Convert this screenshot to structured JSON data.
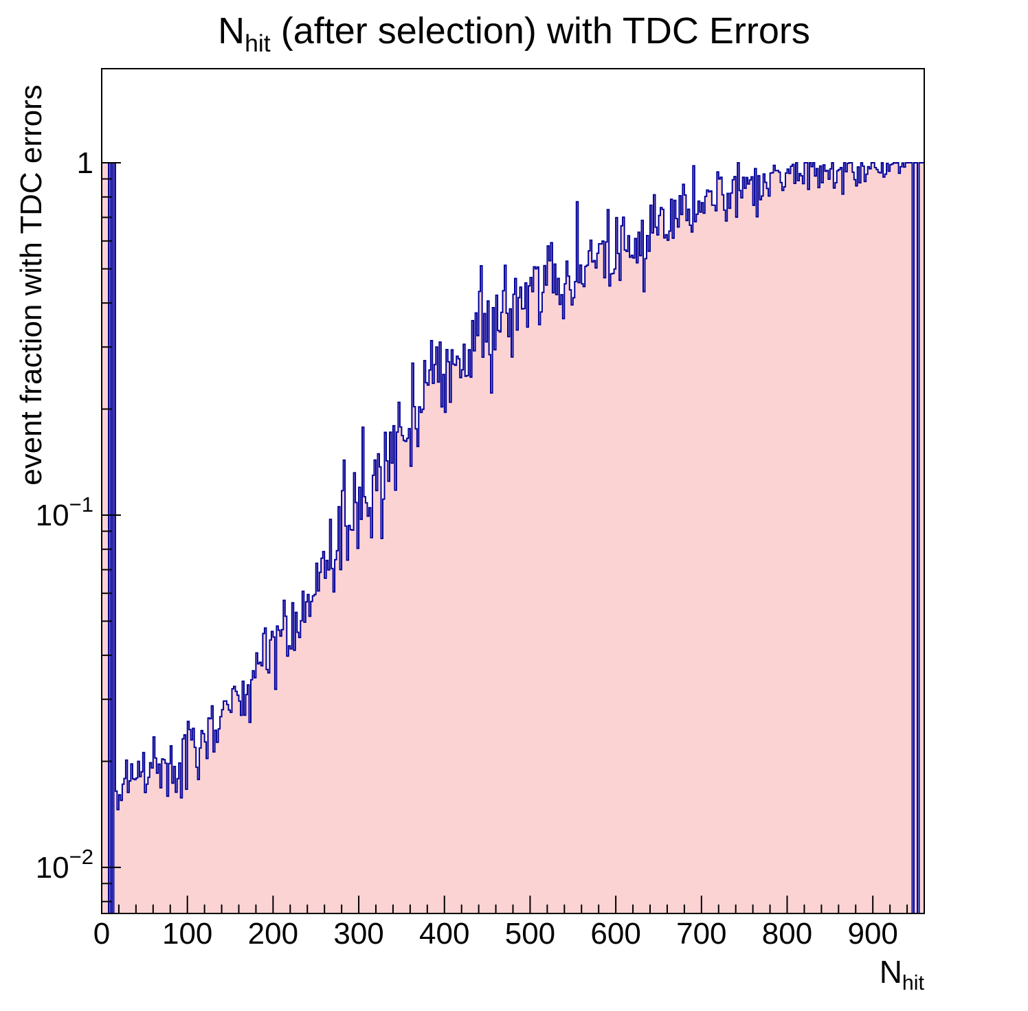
{
  "title": {
    "pre": "N",
    "sub": "hit",
    "post": " (after selection) with TDC Errors"
  },
  "axes": {
    "x": {
      "title_pre": "N",
      "title_sub": "hit",
      "min": 0,
      "max": 960,
      "major_ticks": [
        0,
        100,
        200,
        300,
        400,
        500,
        600,
        700,
        800,
        900
      ],
      "tick_labels": [
        "0",
        "100",
        "200",
        "300",
        "400",
        "500",
        "600",
        "700",
        "800",
        "900"
      ],
      "minor_step": 20
    },
    "y": {
      "title": "event fraction with TDC errors",
      "scale": "log",
      "min": 0.0074,
      "max": 1.85,
      "ticks": [
        {
          "value": 1,
          "text": "1"
        },
        {
          "value": 0.1,
          "base": "10",
          "exp": "−1"
        },
        {
          "value": 0.01,
          "base": "10",
          "exp": "−2"
        }
      ]
    }
  },
  "colors": {
    "fill": "#fbd3d3",
    "line": "#000099",
    "axis": "#000000",
    "background": "#ffffff"
  },
  "chart_data": {
    "type": "histogram",
    "title": "N_hit (after selection) with TDC Errors",
    "xlabel": "N_hit",
    "ylabel": "event fraction with TDC errors",
    "x_range": [
      0,
      960
    ],
    "bin_width": 2,
    "yscale": "log",
    "ylim": [
      0.0074,
      1.85
    ],
    "left_ones_until": 16,
    "left_empty_bin_centers": [
      9,
      13
    ],
    "right_ones_from": 941,
    "right_empty_bin_centers": [
      947,
      953
    ],
    "trend_anchors": [
      [
        17,
        0.0155
      ],
      [
        21,
        0.0158
      ],
      [
        25,
        0.016
      ],
      [
        30,
        0.017
      ],
      [
        40,
        0.019
      ],
      [
        50,
        0.02
      ],
      [
        60,
        0.0198
      ],
      [
        70,
        0.0192
      ],
      [
        80,
        0.019
      ],
      [
        90,
        0.02
      ],
      [
        100,
        0.021
      ],
      [
        110,
        0.0215
      ],
      [
        120,
        0.023
      ],
      [
        130,
        0.025
      ],
      [
        140,
        0.027
      ],
      [
        155,
        0.03
      ],
      [
        170,
        0.033
      ],
      [
        185,
        0.037
      ],
      [
        200,
        0.043
      ],
      [
        215,
        0.048
      ],
      [
        230,
        0.054
      ],
      [
        245,
        0.062
      ],
      [
        260,
        0.072
      ],
      [
        275,
        0.085
      ],
      [
        290,
        0.1
      ],
      [
        305,
        0.113
      ],
      [
        320,
        0.128
      ],
      [
        335,
        0.148
      ],
      [
        350,
        0.17
      ],
      [
        365,
        0.195
      ],
      [
        380,
        0.225
      ],
      [
        395,
        0.25
      ],
      [
        410,
        0.27
      ],
      [
        425,
        0.29
      ],
      [
        440,
        0.31
      ],
      [
        455,
        0.335
      ],
      [
        470,
        0.355
      ],
      [
        485,
        0.385
      ],
      [
        500,
        0.42
      ],
      [
        515,
        0.44
      ],
      [
        530,
        0.455
      ],
      [
        545,
        0.48
      ],
      [
        560,
        0.505
      ],
      [
        575,
        0.53
      ],
      [
        590,
        0.56
      ],
      [
        605,
        0.59
      ],
      [
        620,
        0.615
      ],
      [
        635,
        0.645
      ],
      [
        650,
        0.675
      ],
      [
        665,
        0.705
      ],
      [
        680,
        0.73
      ],
      [
        695,
        0.76
      ],
      [
        710,
        0.785
      ],
      [
        725,
        0.81
      ],
      [
        740,
        0.835
      ],
      [
        755,
        0.855
      ],
      [
        770,
        0.875
      ],
      [
        785,
        0.89
      ],
      [
        800,
        0.905
      ],
      [
        815,
        0.918
      ],
      [
        830,
        0.928
      ],
      [
        845,
        0.938
      ],
      [
        860,
        0.946
      ],
      [
        875,
        0.952
      ],
      [
        890,
        0.958
      ],
      [
        905,
        0.965
      ],
      [
        920,
        0.972
      ],
      [
        935,
        0.98
      ],
      [
        940,
        0.985
      ]
    ],
    "noise": {
      "seed": 20240917,
      "sigma_log_points": [
        [
          0,
          0.05
        ],
        [
          160,
          0.05
        ],
        [
          300,
          0.085
        ],
        [
          480,
          0.075
        ],
        [
          700,
          0.045
        ],
        [
          900,
          0.02
        ],
        [
          960,
          0.012
        ]
      ]
    }
  }
}
